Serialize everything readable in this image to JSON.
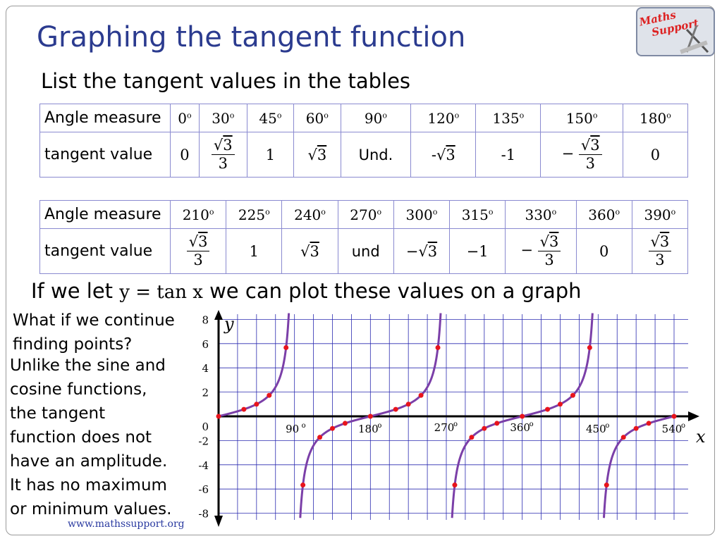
{
  "title": "Graphing the tangent function",
  "subtitle": "List the tangent values in the tables",
  "logo": {
    "line1": "Maths",
    "line2": "Support"
  },
  "table1": {
    "angle_label": "Angle measure",
    "tangent_label": "tangent value",
    "angles": [
      "0",
      "30",
      "45",
      "60",
      "90",
      "120",
      "135",
      "150",
      "180"
    ],
    "values": [
      "0",
      "√3/3",
      "1",
      "√3",
      "Und.",
      "-√3",
      "-1",
      "−√3/3",
      "0"
    ]
  },
  "table2": {
    "angle_label": "Angle measure",
    "tangent_label": "tangent value",
    "angles": [
      "210",
      "225",
      "240",
      "270",
      "300",
      "315",
      "330",
      "360",
      "390"
    ],
    "values": [
      "√3/3",
      "1",
      "√3",
      "und",
      "−√3",
      "−1",
      "−√3/3",
      "0",
      "√3/3"
    ]
  },
  "plot_sentence": {
    "before": "If we let",
    "formula": "y = tan x",
    "after": "we can plot these values on a graph"
  },
  "side_question": [
    "What if we continue",
    "finding points?"
  ],
  "side_note": [
    "Unlike the sine and",
    "cosine functions,",
    "the tangent",
    "function does not",
    "have an amplitude.",
    "It has no maximum",
    "or minimum values."
  ],
  "chart_data": {
    "type": "line",
    "xlabel": "x",
    "ylabel": "y",
    "xlim": [
      0,
      540
    ],
    "ylim": [
      -8,
      8
    ],
    "x_tick_labels": [
      "90",
      "180",
      "270",
      "360",
      "450",
      "540"
    ],
    "x_tick_values": [
      90,
      180,
      270,
      360,
      450,
      540
    ],
    "y_tick_labels": [
      "8",
      "6",
      "4",
      "2",
      "0",
      "-2",
      "-4",
      "-6",
      "-8"
    ],
    "y_tick_values": [
      8,
      6,
      4,
      2,
      0,
      -2,
      -4,
      -6,
      -8
    ],
    "grid": true,
    "curve_color": "#7b3fa8",
    "point_color": "#e8141c",
    "series": [
      {
        "function": "tan",
        "points": [
          [
            0,
            0
          ],
          [
            30,
            0.577
          ],
          [
            45,
            1
          ],
          [
            60,
            1.732
          ],
          [
            80,
            5.671
          ],
          [
            100,
            -5.671
          ],
          [
            120,
            -1.732
          ],
          [
            135,
            -1
          ],
          [
            150,
            -0.577
          ],
          [
            180,
            0
          ],
          [
            210,
            0.577
          ],
          [
            225,
            1
          ],
          [
            240,
            1.732
          ],
          [
            260,
            5.671
          ],
          [
            280,
            -5.671
          ],
          [
            300,
            -1.732
          ],
          [
            315,
            -1
          ],
          [
            330,
            -0.577
          ],
          [
            360,
            0
          ],
          [
            390,
            0.577
          ],
          [
            405,
            1
          ],
          [
            420,
            1.732
          ],
          [
            440,
            5.671
          ],
          [
            460,
            -5.671
          ],
          [
            480,
            -1.732
          ],
          [
            495,
            -1
          ],
          [
            510,
            -0.577
          ],
          [
            540,
            0
          ]
        ]
      }
    ]
  },
  "footer": "www.mathssupport.org",
  "colors": {
    "title": "#2b3b8f",
    "table_border": "#8a8ad0",
    "footer": "#2a3aa0"
  }
}
